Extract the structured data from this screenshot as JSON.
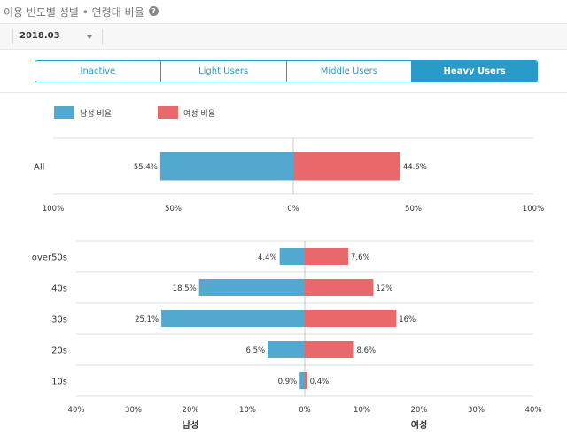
{
  "header": {
    "title": "이용 빈도별 성별 • 연령대 비율"
  },
  "toolbar": {
    "date_value": "2018.03"
  },
  "tabs": [
    {
      "label": "Inactive",
      "active": false
    },
    {
      "label": "Light Users",
      "active": false
    },
    {
      "label": "Middle Users",
      "active": false
    },
    {
      "label": "Heavy Users",
      "active": true
    }
  ],
  "legend": {
    "male": "남성 비율",
    "female": "여성 비율"
  },
  "colors": {
    "male": "#52a8cf",
    "female": "#e8686b",
    "accent": "#2a9bc9"
  },
  "chart_data": [
    {
      "type": "bar",
      "orientation": "horizontal-diverging",
      "categories": [
        "All"
      ],
      "series": [
        {
          "name": "남성 비율",
          "values": [
            55.4
          ],
          "labels": [
            "55.4%"
          ]
        },
        {
          "name": "여성 비율",
          "values": [
            44.6
          ],
          "labels": [
            "44.6%"
          ]
        }
      ],
      "xlim": [
        -100,
        100
      ],
      "ticks": [
        "100%",
        "50%",
        "0%",
        "50%",
        "100%"
      ]
    },
    {
      "type": "bar",
      "orientation": "horizontal-diverging",
      "categories": [
        "over50s",
        "40s",
        "30s",
        "20s",
        "10s"
      ],
      "series": [
        {
          "name": "남성",
          "values": [
            4.4,
            18.5,
            25.1,
            6.5,
            0.9
          ],
          "labels": [
            "4.4%",
            "18.5%",
            "25.1%",
            "6.5%",
            "0.9%"
          ]
        },
        {
          "name": "여성",
          "values": [
            7.6,
            12,
            16,
            8.6,
            0.4
          ],
          "labels": [
            "7.6%",
            "12%",
            "16%",
            "8.6%",
            "0.4%"
          ]
        }
      ],
      "xlim": [
        -40,
        40
      ],
      "ticks": [
        "40%",
        "30%",
        "20%",
        "10%",
        "0%",
        "10%",
        "20%",
        "30%",
        "40%"
      ],
      "xlabel_left": "남성",
      "xlabel_right": "여성"
    }
  ]
}
